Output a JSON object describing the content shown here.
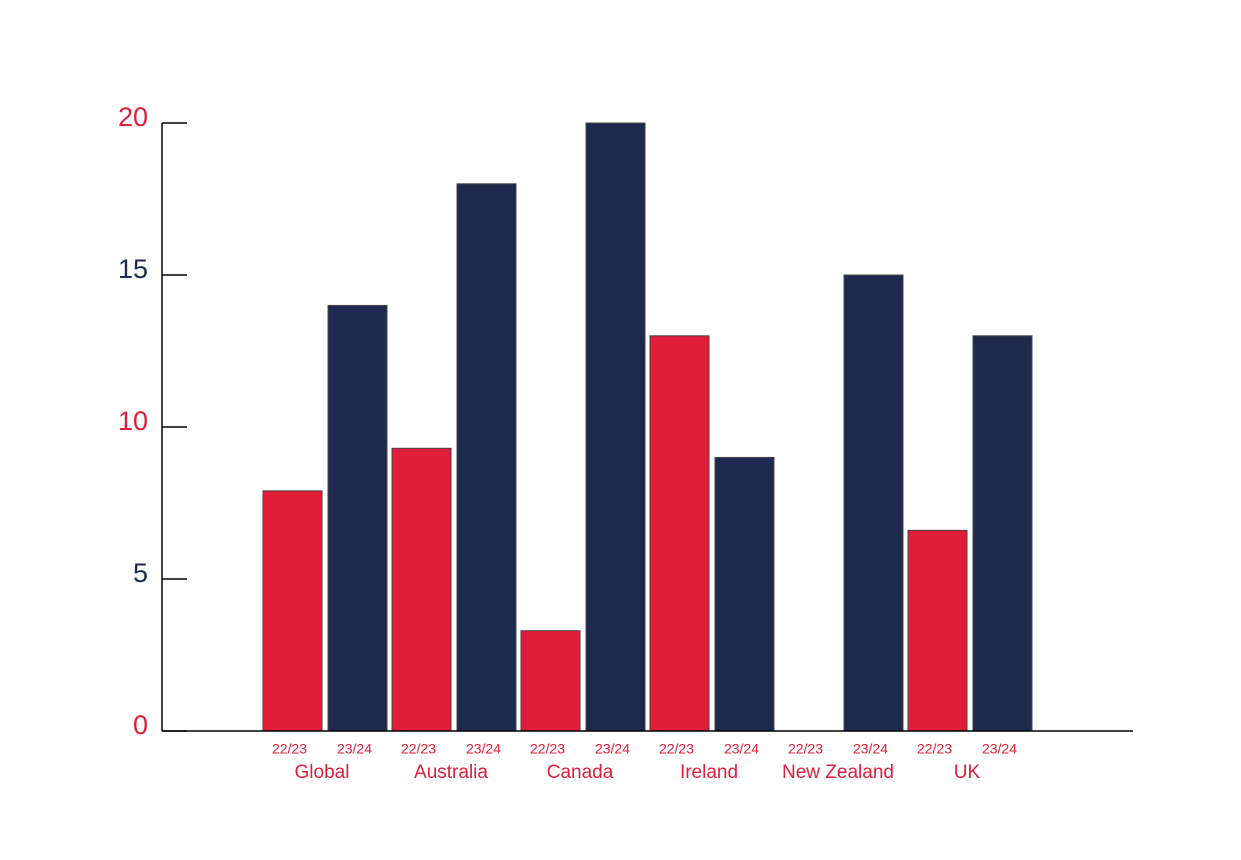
{
  "chart_data": {
    "type": "bar",
    "categories": [
      "Global",
      "Australia",
      "Canada",
      "Ireland",
      "New Zealand",
      "UK"
    ],
    "series": [
      {
        "name": "22/23",
        "color": "#e11d39",
        "values": [
          7.9,
          9.3,
          3.3,
          13,
          0,
          6.6
        ]
      },
      {
        "name": "23/24",
        "color": "#1e2950",
        "values": [
          14,
          18,
          20,
          9,
          15,
          13
        ]
      }
    ],
    "ylim": [
      0,
      20
    ],
    "yticks": [
      0,
      5,
      10,
      15,
      20
    ],
    "ytick_colors": [
      "#e11d39",
      "#1e2950",
      "#e11d39",
      "#1e2950",
      "#e11d39"
    ],
    "label_color": "#e11d39"
  }
}
